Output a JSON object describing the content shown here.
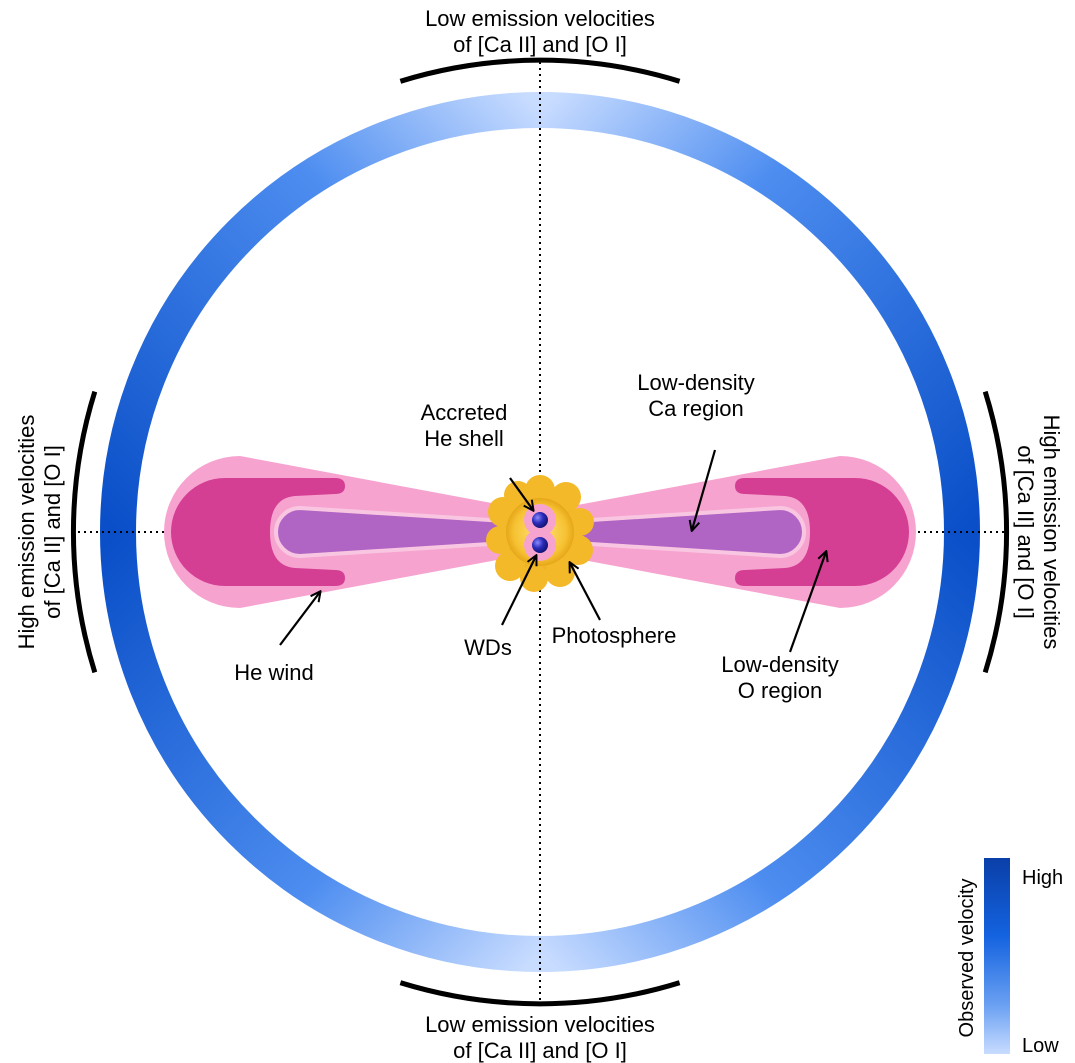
{
  "labels": {
    "top_line1": "Low emission velocities",
    "top_line2": "of [Ca II] and [O I]",
    "bottom_line1": "Low emission velocities",
    "bottom_line2": "of [Ca II] and [O I]",
    "left_line1": "High emission velocities",
    "left_line2": "of [Ca II] and [O I]",
    "right_line1": "High emission velocities",
    "right_line2": "of [Ca II] and [O I]",
    "accreted_line1": "Accreted",
    "accreted_line2": "He shell",
    "ca_line1": "Low-density",
    "ca_line2": "Ca region",
    "o_line1": "Low-density",
    "o_line2": "O region",
    "he_wind": "He wind",
    "wds": "WDs",
    "photosphere": "Photosphere"
  },
  "legend": {
    "title": "Observed velocity",
    "high": "High",
    "low": "Low"
  },
  "colors": {
    "ring_high": "#0a4fc8",
    "ring_mid": "#2f78ea",
    "ring_low": "#c8dcff",
    "he_wind": "#f7a3cf",
    "o_region": "#d43f93",
    "ca_region": "#b064c4",
    "photosphere": "#f3b928",
    "wd": "#2b2bb8"
  }
}
